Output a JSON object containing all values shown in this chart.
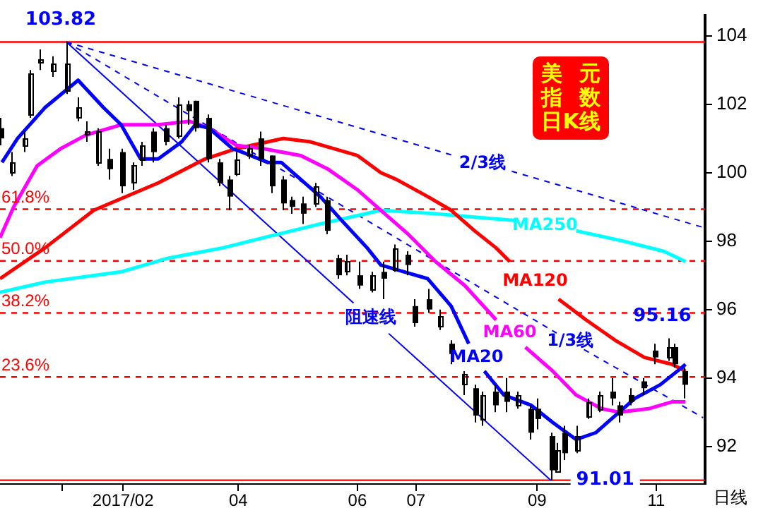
{
  "chart_data": {
    "type": "candlestick",
    "title": "美元指数日K线",
    "xlabel": "日线",
    "color": "#000000",
    "marker": "none",
    "xlim": [
      "2016-11-30",
      "2017-11-26"
    ],
    "xticks": [
      {
        "value": "2017-01-01",
        "label": null
      },
      {
        "value": "2017-02-01",
        "label": "2017/02"
      },
      {
        "value": "2017-04-01",
        "label": "04"
      },
      {
        "value": "2017-06-01",
        "label": "06"
      },
      {
        "value": "2017-07-01",
        "label": "07"
      },
      {
        "value": "2017-09-01",
        "label": "09"
      },
      {
        "value": "2017-11-01",
        "label": "11"
      }
    ],
    "ylim": [
      90.9,
      104.6
    ],
    "yticks": [
      92,
      94,
      96,
      98,
      100,
      102,
      104
    ],
    "x": [
      "2016-11-30",
      "2016-12-06",
      "2016-12-12",
      "2016-12-15",
      "2016-12-20",
      "2016-12-27",
      "2017-01-03",
      "2017-01-09",
      "2017-01-13",
      "2017-01-19",
      "2017-01-25",
      "2017-01-31",
      "2017-02-06",
      "2017-02-10",
      "2017-02-16",
      "2017-02-23",
      "2017-03-01",
      "2017-03-06",
      "2017-03-10",
      "2017-03-16",
      "2017-03-22",
      "2017-03-27",
      "2017-03-31",
      "2017-04-06",
      "2017-04-12",
      "2017-04-18",
      "2017-04-24",
      "2017-04-28",
      "2017-05-04",
      "2017-05-10",
      "2017-05-16",
      "2017-05-22",
      "2017-05-26",
      "2017-06-02",
      "2017-06-08",
      "2017-06-14",
      "2017-06-20",
      "2017-06-26",
      "2017-06-30",
      "2017-07-07",
      "2017-07-13",
      "2017-07-19",
      "2017-07-25",
      "2017-07-31",
      "2017-08-04",
      "2017-08-10",
      "2017-08-16",
      "2017-08-22",
      "2017-08-28",
      "2017-09-01",
      "2017-09-08",
      "2017-09-11",
      "2017-09-15",
      "2017-09-21",
      "2017-09-27",
      "2017-10-03",
      "2017-10-09",
      "2017-10-13",
      "2017-10-19",
      "2017-10-25",
      "2017-10-31",
      "2017-11-07",
      "2017-11-10",
      "2017-11-15"
    ],
    "ohlc": [
      [
        101.3,
        101.6,
        100.8,
        101.0
      ],
      [
        100.0,
        100.6,
        99.9,
        100.3
      ],
      [
        100.8,
        101.2,
        100.6,
        101.0
      ],
      [
        101.7,
        103.0,
        101.6,
        102.9
      ],
      [
        103.2,
        103.6,
        103.0,
        103.3
      ],
      [
        103.0,
        103.4,
        102.8,
        103.2
      ],
      [
        102.4,
        103.82,
        102.3,
        103.2
      ],
      [
        101.6,
        102.2,
        101.5,
        101.9
      ],
      [
        101.1,
        101.5,
        100.9,
        101.2
      ],
      [
        100.3,
        101.3,
        100.2,
        101.2
      ],
      [
        100.4,
        100.7,
        99.8,
        100.1
      ],
      [
        100.6,
        100.7,
        99.4,
        99.6
      ],
      [
        99.7,
        100.3,
        99.5,
        100.2
      ],
      [
        100.4,
        100.9,
        100.2,
        100.8
      ],
      [
        101.2,
        101.3,
        100.3,
        100.6
      ],
      [
        101.3,
        101.4,
        100.8,
        100.9
      ],
      [
        101.1,
        102.2,
        101.0,
        102.0
      ],
      [
        102.0,
        102.1,
        101.4,
        101.8
      ],
      [
        102.1,
        102.1,
        101.2,
        101.3
      ],
      [
        101.6,
        101.7,
        100.3,
        100.4
      ],
      [
        100.3,
        100.4,
        99.6,
        99.7
      ],
      [
        99.8,
        99.9,
        98.9,
        99.3
      ],
      [
        100.0,
        100.6,
        99.9,
        100.4
      ],
      [
        100.5,
        100.8,
        100.4,
        100.7
      ],
      [
        101.0,
        101.2,
        100.2,
        100.4
      ],
      [
        100.5,
        100.5,
        99.4,
        99.6
      ],
      [
        99.8,
        99.9,
        98.9,
        99.1
      ],
      [
        99.2,
        99.3,
        98.8,
        99.0
      ],
      [
        99.1,
        99.3,
        98.5,
        98.8
      ],
      [
        99.1,
        99.7,
        99.0,
        99.6
      ],
      [
        99.2,
        99.3,
        98.2,
        98.3
      ],
      [
        97.5,
        97.6,
        96.9,
        97.0
      ],
      [
        97.1,
        97.6,
        97.0,
        97.4
      ],
      [
        97.0,
        97.4,
        96.6,
        96.7
      ],
      [
        96.6,
        97.1,
        96.5,
        97.0
      ],
      [
        97.1,
        97.4,
        96.3,
        96.9
      ],
      [
        97.2,
        97.9,
        97.1,
        97.8
      ],
      [
        97.6,
        97.7,
        97.0,
        97.3
      ],
      [
        96.1,
        96.3,
        95.5,
        95.6
      ],
      [
        96.3,
        96.6,
        95.9,
        96.0
      ],
      [
        95.5,
        96.0,
        95.4,
        95.8
      ],
      [
        95.0,
        95.1,
        94.4,
        94.7
      ],
      [
        93.8,
        94.2,
        93.5,
        94.1
      ],
      [
        93.7,
        93.8,
        92.7,
        92.9
      ],
      [
        92.8,
        93.6,
        92.6,
        93.5
      ],
      [
        93.6,
        93.8,
        93.0,
        93.2
      ],
      [
        93.6,
        94.0,
        93.0,
        93.3
      ],
      [
        93.2,
        93.6,
        93.1,
        93.5
      ],
      [
        93.1,
        93.2,
        92.2,
        92.4
      ],
      [
        93.1,
        93.4,
        92.5,
        92.8
      ],
      [
        92.3,
        92.4,
        91.01,
        91.3
      ],
      [
        91.3,
        92.1,
        91.3,
        91.9
      ],
      [
        92.4,
        92.6,
        91.6,
        91.8
      ],
      [
        91.9,
        92.6,
        91.8,
        92.3
      ],
      [
        92.9,
        93.4,
        92.8,
        93.3
      ],
      [
        93.1,
        93.6,
        93.0,
        93.5
      ],
      [
        93.6,
        94.0,
        93.2,
        93.4
      ],
      [
        93.2,
        93.3,
        92.7,
        92.9
      ],
      [
        93.5,
        93.7,
        93.2,
        93.3
      ],
      [
        93.9,
        94.0,
        93.5,
        93.7
      ],
      [
        94.8,
        95.0,
        94.4,
        94.6
      ],
      [
        94.6,
        95.16,
        94.5,
        94.9
      ],
      [
        94.9,
        95.0,
        94.3,
        94.4
      ],
      [
        94.2,
        94.3,
        93.4,
        93.8
      ]
    ],
    "series": [
      {
        "type": "line",
        "name": "MA20",
        "color": "#0000ff",
        "x": [
          "2016-12-01",
          "2016-12-09",
          "2016-12-23",
          "2017-01-09",
          "2017-01-22",
          "2017-01-31",
          "2017-02-10",
          "2017-02-19",
          "2017-03-03",
          "2017-03-10",
          "2017-03-17",
          "2017-03-29",
          "2017-04-03",
          "2017-04-16",
          "2017-04-23",
          "2017-05-03",
          "2017-05-13",
          "2017-05-24",
          "2017-06-06",
          "2017-06-13",
          "2017-06-25",
          "2017-07-07",
          "2017-07-19",
          "2017-07-28",
          "2017-08-01",
          "2017-08-05",
          "2017-08-15",
          "2017-08-29",
          "2017-09-09",
          "2017-09-21",
          "2017-10-01",
          "2017-10-09",
          "2017-10-21",
          "2017-11-03",
          "2017-11-14",
          "2017-11-16"
        ],
        "values": [
          100.3,
          101.0,
          101.9,
          102.7,
          101.9,
          101.4,
          100.4,
          100.4,
          100.9,
          101.4,
          101.3,
          100.7,
          100.6,
          100.3,
          100.3,
          99.8,
          99.3,
          98.6,
          97.8,
          97.3,
          97.1,
          96.9,
          96.1,
          95.0,
          null,
          94.2,
          93.5,
          93.2,
          92.7,
          92.2,
          92.4,
          92.8,
          93.4,
          93.8,
          94.3,
          94.4
        ]
      },
      {
        "type": "line",
        "name": "MA60",
        "color": "#ff00ff",
        "x": [
          "2016-11-30",
          "2016-12-07",
          "2016-12-19",
          "2016-12-31",
          "2017-01-13",
          "2017-01-31",
          "2017-02-19",
          "2017-03-07",
          "2017-03-17",
          "2017-03-31",
          "2017-04-14",
          "2017-05-03",
          "2017-05-17",
          "2017-06-01",
          "2017-06-13",
          "2017-06-27",
          "2017-07-11",
          "2017-07-26",
          "2017-08-11",
          "2017-08-18",
          "2017-08-26",
          "2017-09-09",
          "2017-09-21",
          "2017-10-04",
          "2017-10-13",
          "2017-10-28",
          "2017-11-09",
          "2017-11-16"
        ],
        "values": [
          98.1,
          99.0,
          100.2,
          100.7,
          101.1,
          101.4,
          101.4,
          101.5,
          101.3,
          100.8,
          100.7,
          100.5,
          100.1,
          99.5,
          98.9,
          98.2,
          97.4,
          96.7,
          95.7,
          null,
          94.9,
          94.2,
          93.5,
          93.1,
          93.0,
          93.1,
          93.3,
          93.3
        ]
      },
      {
        "type": "line",
        "name": "MA120",
        "color": "#ff0000",
        "x": [
          "2016-11-30",
          "2016-12-23",
          "2017-01-17",
          "2017-02-19",
          "2017-03-15",
          "2017-03-31",
          "2017-04-24",
          "2017-05-08",
          "2017-06-01",
          "2017-06-13",
          "2017-06-21",
          "2017-07-07",
          "2017-07-19",
          "2017-07-31",
          "2017-08-11",
          "2017-08-18",
          "2017-08-31",
          "2017-09-12",
          "2017-09-26",
          "2017-10-11",
          "2017-10-26",
          "2017-11-09",
          "2017-11-16"
        ],
        "values": [
          96.9,
          97.8,
          98.9,
          99.7,
          100.4,
          100.7,
          101.0,
          100.9,
          100.5,
          100.0,
          99.8,
          99.3,
          98.9,
          98.3,
          97.8,
          97.4,
          null,
          96.3,
          95.7,
          95.1,
          94.6,
          94.4,
          94.2
        ]
      },
      {
        "type": "line",
        "name": "MA250",
        "color": "#00ffff",
        "x": [
          "2016-11-30",
          "2016-12-23",
          "2017-01-31",
          "2017-02-24",
          "2017-03-24",
          "2017-04-14",
          "2017-05-13",
          "2017-06-13",
          "2017-07-11",
          "2017-07-31",
          "2017-08-21",
          "2017-09-05",
          "2017-09-21",
          "2017-10-15",
          "2017-11-05",
          "2017-11-16"
        ],
        "values": [
          96.5,
          96.8,
          97.1,
          97.5,
          97.8,
          98.1,
          98.5,
          98.9,
          98.8,
          98.7,
          98.6,
          null,
          98.3,
          98.0,
          97.7,
          97.4
        ]
      },
      {
        "type": "line",
        "name": "阻速线",
        "color": "#0000ff",
        "line_style": "solid",
        "x": [
          "2017-01-03",
          "2017-05-30",
          "2017-06-08",
          "2017-06-17",
          "2017-09-08"
        ],
        "values": [
          103.82,
          96.19,
          null,
          95.3,
          91.01
        ]
      },
      {
        "type": "line",
        "name": "1/3线",
        "color": "#0000ff",
        "line_style": "dashed",
        "x": [
          "2017-01-03",
          "2017-09-11",
          "2017-09-18",
          "2017-09-25",
          "2017-11-25"
        ],
        "values": [
          103.82,
          95.31,
          null,
          94.83,
          92.84
        ]
      },
      {
        "type": "line",
        "name": "2/3线",
        "color": "#0000ff",
        "line_style": "dashed",
        "x": [
          "2017-01-03",
          "2017-07-19",
          "2017-08-04",
          "2017-08-19",
          "2017-11-25"
        ],
        "values": [
          103.82,
          100.52,
          null,
          100.04,
          98.4
        ]
      }
    ],
    "ref_lines": [
      {
        "axis": "y",
        "value": 103.82,
        "color": "#ff0000",
        "line_style": "solid"
      },
      {
        "axis": "y",
        "value": 98.93,
        "color": "#ff0000",
        "line_style": "dashed"
      },
      {
        "axis": "y",
        "value": 97.42,
        "color": "#ff0000",
        "line_style": "dashed"
      },
      {
        "axis": "y",
        "value": 95.9,
        "color": "#ff0000",
        "line_style": "dashed"
      },
      {
        "axis": "y",
        "value": 94.03,
        "color": "#ff0000",
        "line_style": "dashed"
      },
      {
        "axis": "y",
        "value": 91.01,
        "color": "#ff0000",
        "line_style": "solid"
      }
    ],
    "annotations": [
      {
        "text": "103.82",
        "x": "2017-01-03",
        "y": 103.82
      },
      {
        "text": "95.16",
        "x": "2017-11-07",
        "y": 95.16
      },
      {
        "text": "91.01",
        "x": "2017-09-08",
        "y": 91.01
      },
      {
        "text": "61.8%",
        "x": "2016-11-30",
        "y": 98.93
      },
      {
        "text": "50.0%",
        "x": "2016-11-30",
        "y": 97.42
      },
      {
        "text": "38.2%",
        "x": "2016-11-30",
        "y": 95.9
      },
      {
        "text": "23.6%",
        "x": "2016-11-30",
        "y": 94.03
      }
    ]
  }
}
